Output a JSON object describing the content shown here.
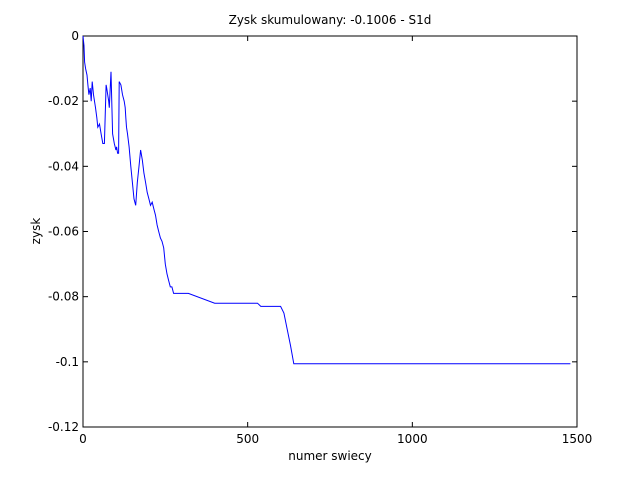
{
  "chart_data": {
    "type": "line",
    "title": "Zysk skumulowany: -0.1006 - S1d",
    "xlabel": "numer swiecy",
    "ylabel": "zysk",
    "xlim": [
      0,
      1500
    ],
    "ylim": [
      -0.12,
      0
    ],
    "xticks": [
      0,
      500,
      1000,
      1500
    ],
    "xtick_labels": [
      "0",
      "500",
      "1000",
      "1500"
    ],
    "yticks": [
      -0.12,
      -0.1,
      -0.08,
      -0.06,
      -0.04,
      -0.02,
      0
    ],
    "ytick_labels": [
      "-0.12",
      "-0.1",
      "-0.08",
      "-0.06",
      "-0.04",
      "-0.02",
      "0"
    ],
    "grid": false,
    "series": [
      {
        "color": "#0000ff",
        "x": [
          0,
          3,
          5,
          8,
          12,
          15,
          18,
          22,
          25,
          28,
          32,
          35,
          38,
          42,
          45,
          50,
          55,
          60,
          65,
          70,
          72,
          75,
          78,
          80,
          85,
          90,
          95,
          100,
          102,
          105,
          108,
          110,
          115,
          120,
          125,
          128,
          130,
          132,
          135,
          140,
          145,
          150,
          155,
          160,
          165,
          170,
          175,
          180,
          185,
          190,
          195,
          200,
          205,
          210,
          215,
          220,
          225,
          230,
          235,
          240,
          245,
          250,
          255,
          260,
          265,
          270,
          275,
          280,
          285,
          290,
          300,
          310,
          320,
          400,
          530,
          540,
          600,
          610,
          620,
          630,
          640,
          1480
        ],
        "values": [
          0,
          -0.003,
          -0.008,
          -0.01,
          -0.012,
          -0.015,
          -0.018,
          -0.016,
          -0.02,
          -0.014,
          -0.018,
          -0.02,
          -0.022,
          -0.025,
          -0.028,
          -0.027,
          -0.03,
          -0.033,
          -0.033,
          -0.015,
          -0.016,
          -0.018,
          -0.02,
          -0.022,
          -0.011,
          -0.03,
          -0.033,
          -0.035,
          -0.034,
          -0.036,
          -0.036,
          -0.014,
          -0.015,
          -0.018,
          -0.02,
          -0.022,
          -0.025,
          -0.028,
          -0.03,
          -0.034,
          -0.04,
          -0.045,
          -0.05,
          -0.052,
          -0.045,
          -0.04,
          -0.035,
          -0.038,
          -0.042,
          -0.045,
          -0.048,
          -0.05,
          -0.052,
          -0.051,
          -0.053,
          -0.055,
          -0.058,
          -0.06,
          -0.062,
          -0.063,
          -0.065,
          -0.07,
          -0.073,
          -0.075,
          -0.077,
          -0.077,
          -0.079,
          -0.079,
          -0.079,
          -0.079,
          -0.079,
          -0.079,
          -0.079,
          -0.082,
          -0.082,
          -0.083,
          -0.083,
          -0.085,
          -0.09,
          -0.095,
          -0.1006,
          -0.1006
        ]
      }
    ]
  }
}
